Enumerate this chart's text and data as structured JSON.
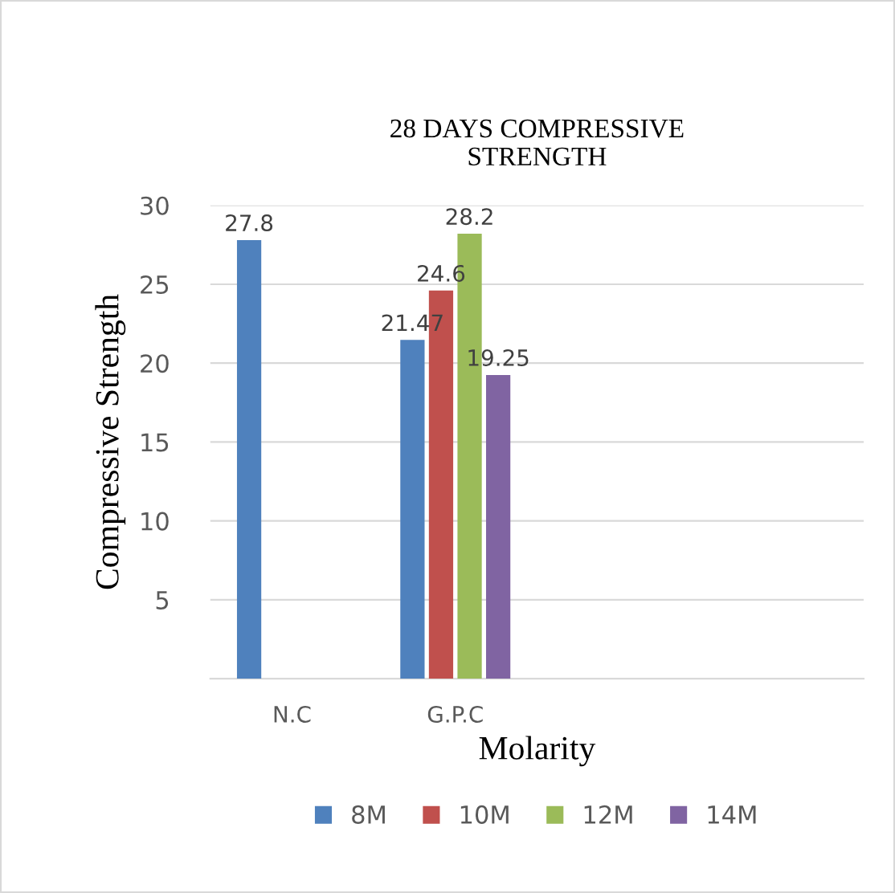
{
  "chart_data": {
    "type": "bar",
    "title": "28 DAYS COMPRESSIVE\nSTRENGTH",
    "xlabel": "Molarity",
    "ylabel": "Compressive Strength",
    "categories": [
      "N.C",
      "G.P.C",
      null,
      null
    ],
    "series": [
      {
        "name": "8M",
        "color": "#4f81bd",
        "values": [
          27.8,
          21.47,
          null,
          null
        ]
      },
      {
        "name": "10M",
        "color": "#c0504d",
        "values": [
          null,
          24.6,
          null,
          null
        ]
      },
      {
        "name": "12M",
        "color": "#9bbb59",
        "values": [
          null,
          28.2,
          null,
          null
        ]
      },
      {
        "name": "14M",
        "color": "#8064a2",
        "values": [
          null,
          19.25,
          null,
          null
        ]
      }
    ],
    "ylim": [
      0,
      30
    ],
    "yticks": [
      {
        "value": 0,
        "label": null
      },
      5,
      10,
      15,
      20,
      25,
      30
    ],
    "grid": "y",
    "legend": "bottom",
    "data_labels": true
  }
}
